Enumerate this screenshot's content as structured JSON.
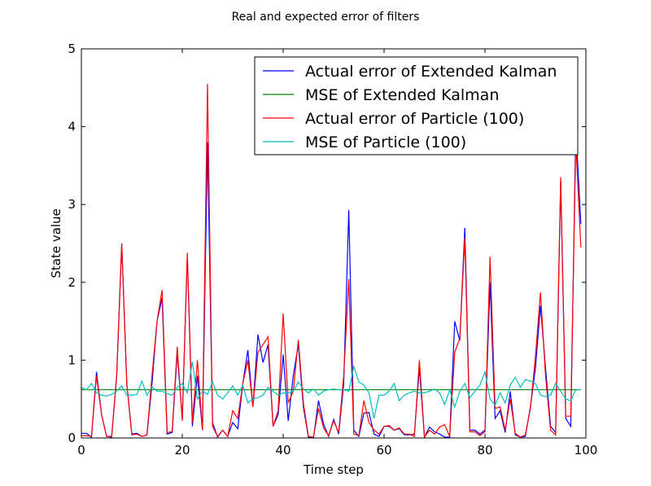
{
  "chart_data": {
    "type": "line",
    "title": "Real and expected error of filters",
    "xlabel": "Time step",
    "ylabel": "State value",
    "xlim": [
      0,
      100
    ],
    "ylim": [
      0,
      5
    ],
    "xticks": [
      "0",
      "20",
      "40",
      "60",
      "80",
      "100"
    ],
    "yticks": [
      "0",
      "1",
      "2",
      "3",
      "4",
      "5"
    ],
    "grid": false,
    "legend": "top-right",
    "series": [
      {
        "name": "Actual error of Extended Kalman",
        "color": "#0000ff",
        "values": [
          0.06,
          0.06,
          0.01,
          0.85,
          0.3,
          0.02,
          0.01,
          0.8,
          2.5,
          0.7,
          0.05,
          0.06,
          0.02,
          0.04,
          0.7,
          1.5,
          1.8,
          0.05,
          0.07,
          1.1,
          0.25,
          2.35,
          0.15,
          0.8,
          0.1,
          3.8,
          0.2,
          0.01,
          0.1,
          0.02,
          0.2,
          0.12,
          0.7,
          1.13,
          0.4,
          1.33,
          0.97,
          1.2,
          0.15,
          0.3,
          1.07,
          0.22,
          0.8,
          1.2,
          0.4,
          0.01,
          0.0,
          0.48,
          0.18,
          0.02,
          0.24,
          0.05,
          0.7,
          2.93,
          0.1,
          0.02,
          0.32,
          0.33,
          0.05,
          0.02,
          0.15,
          0.15,
          0.1,
          0.12,
          0.04,
          0.04,
          0.05,
          0.9,
          0.01,
          0.14,
          0.08,
          0.05,
          0.01,
          0.01,
          1.5,
          1.25,
          2.7,
          0.1,
          0.1,
          0.05,
          0.1,
          2.0,
          0.25,
          0.35,
          0.07,
          0.6,
          0.04,
          0.01,
          0.02,
          0.4,
          0.9,
          1.7,
          0.9,
          0.15,
          0.07,
          3.3,
          0.25,
          0.15,
          4.0,
          2.75
        ]
      },
      {
        "name": "MSE of Extended Kalman",
        "color": "#008000",
        "values": [
          0.62,
          0.62,
          0.62,
          0.62,
          0.62,
          0.62,
          0.62,
          0.62,
          0.62,
          0.62,
          0.62,
          0.62,
          0.62,
          0.62,
          0.62,
          0.62,
          0.62,
          0.62,
          0.62,
          0.62,
          0.62,
          0.62,
          0.62,
          0.62,
          0.62,
          0.62,
          0.62,
          0.62,
          0.62,
          0.62,
          0.62,
          0.62,
          0.62,
          0.62,
          0.62,
          0.62,
          0.62,
          0.62,
          0.62,
          0.62,
          0.62,
          0.62,
          0.62,
          0.62,
          0.62,
          0.62,
          0.62,
          0.62,
          0.62,
          0.62,
          0.62,
          0.62,
          0.62,
          0.62,
          0.62,
          0.62,
          0.62,
          0.62,
          0.62,
          0.62,
          0.62,
          0.62,
          0.62,
          0.62,
          0.62,
          0.62,
          0.62,
          0.62,
          0.62,
          0.62,
          0.62,
          0.62,
          0.62,
          0.62,
          0.62,
          0.62,
          0.62,
          0.62,
          0.62,
          0.62,
          0.62,
          0.62,
          0.62,
          0.62,
          0.62,
          0.62,
          0.62,
          0.62,
          0.62,
          0.62,
          0.62,
          0.62,
          0.62,
          0.62,
          0.62,
          0.62,
          0.62,
          0.62,
          0.62,
          0.62
        ]
      },
      {
        "name": "Actual error of Particle (100)",
        "color": "#ff0000",
        "values": [
          0.03,
          0.03,
          0.02,
          0.8,
          0.3,
          0.02,
          0.02,
          0.8,
          2.5,
          0.7,
          0.04,
          0.05,
          0.02,
          0.04,
          0.8,
          1.5,
          1.9,
          0.07,
          0.08,
          1.17,
          0.22,
          2.38,
          0.2,
          1.0,
          0.1,
          4.55,
          0.15,
          0.02,
          0.1,
          0.02,
          0.35,
          0.25,
          0.7,
          1.0,
          0.4,
          1.1,
          1.2,
          1.3,
          0.15,
          0.35,
          1.6,
          0.45,
          0.6,
          1.26,
          0.45,
          0.02,
          0.01,
          0.38,
          0.13,
          0.03,
          0.22,
          0.07,
          0.8,
          2.04,
          0.05,
          0.03,
          0.48,
          0.2,
          0.1,
          0.05,
          0.15,
          0.16,
          0.1,
          0.13,
          0.05,
          0.05,
          0.02,
          1.0,
          0.01,
          0.1,
          0.05,
          0.14,
          0.17,
          0.02,
          1.1,
          1.28,
          2.57,
          0.08,
          0.08,
          0.03,
          0.08,
          2.33,
          0.38,
          0.4,
          0.1,
          0.5,
          0.06,
          0.01,
          0.04,
          0.38,
          1.05,
          1.87,
          0.8,
          0.1,
          0.04,
          3.35,
          0.28,
          0.28,
          3.8,
          2.45
        ]
      },
      {
        "name": "MSE of Particle (100)",
        "color": "#00bfbf",
        "values": [
          0.65,
          0.62,
          0.7,
          0.58,
          0.55,
          0.54,
          0.56,
          0.6,
          0.67,
          0.55,
          0.55,
          0.56,
          0.73,
          0.55,
          0.66,
          0.6,
          0.6,
          0.57,
          0.55,
          0.65,
          0.7,
          0.58,
          0.98,
          0.5,
          0.6,
          0.56,
          0.72,
          0.55,
          0.5,
          0.58,
          0.67,
          0.55,
          0.68,
          0.45,
          0.5,
          0.52,
          0.55,
          0.65,
          0.6,
          0.55,
          0.58,
          0.58,
          0.6,
          0.72,
          0.63,
          0.58,
          0.63,
          0.55,
          0.6,
          0.62,
          0.63,
          0.62,
          0.62,
          0.6,
          0.92,
          0.72,
          0.68,
          0.58,
          0.25,
          0.55,
          0.55,
          0.6,
          0.7,
          0.48,
          0.55,
          0.58,
          0.6,
          0.58,
          0.58,
          0.6,
          0.63,
          0.58,
          0.43,
          0.62,
          0.4,
          0.6,
          0.7,
          0.52,
          0.6,
          0.68,
          0.85,
          0.5,
          0.42,
          0.58,
          0.45,
          0.68,
          0.78,
          0.65,
          0.75,
          0.73,
          0.7,
          0.55,
          0.53,
          0.55,
          0.7,
          0.6,
          0.5,
          0.48,
          0.62,
          0.62
        ]
      }
    ]
  }
}
